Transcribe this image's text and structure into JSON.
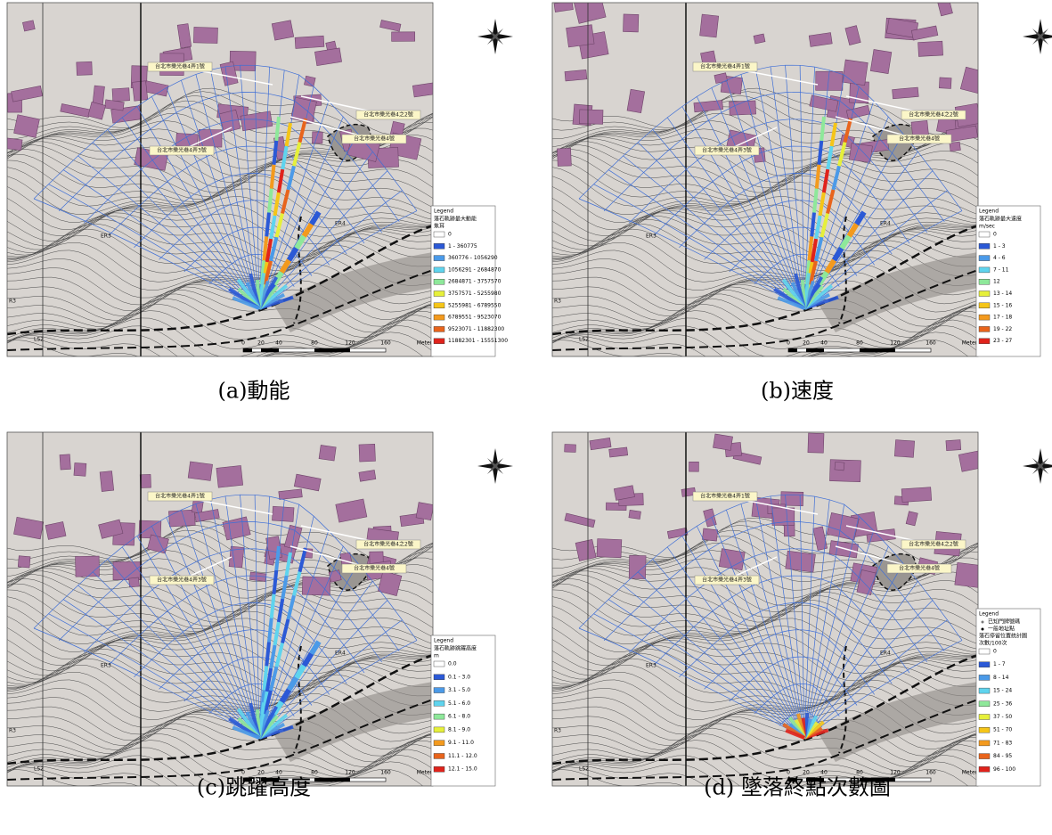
{
  "panels": [
    {
      "caption": "(a)動能",
      "legend": {
        "title": "Legend",
        "heading": "落石軌跡最大動能",
        "unit": "焦耳",
        "items": [
          {
            "label": "0",
            "color": "#ffffff"
          },
          {
            "label": "1 - 360775",
            "color": "#2b59d6"
          },
          {
            "label": "360776 - 1056290",
            "color": "#4b9ae8"
          },
          {
            "label": "1056291 - 2684870",
            "color": "#5fd4ee"
          },
          {
            "label": "2684871 - 3757570",
            "color": "#8ee89a"
          },
          {
            "label": "3757571 - 5255980",
            "color": "#e6f03a"
          },
          {
            "label": "5255981 - 6789550",
            "color": "#f5c518"
          },
          {
            "label": "6789551 - 9523070",
            "color": "#f39a1e"
          },
          {
            "label": "9523071 - 11882300",
            "color": "#e8641c"
          },
          {
            "label": "11882301 - 15551300",
            "color": "#e0231c"
          }
        ]
      },
      "scale": [
        "0",
        "20",
        "40",
        "80",
        "120",
        "160",
        "Meters"
      ],
      "places": [
        "台北市樂光巷4弄1號",
        "台北市樂光巷4之2號",
        "台北市樂光巷4弄3號",
        "台北市樂光巷4號"
      ],
      "map_labels": [
        "ER3",
        "R3",
        "LS2",
        "ER4"
      ]
    },
    {
      "caption": "(b)速度",
      "legend": {
        "title": "Legend",
        "heading": "落石軌跡最大速度",
        "unit": "m/sec",
        "items": [
          {
            "label": "0",
            "color": "#ffffff"
          },
          {
            "label": "1 - 3",
            "color": "#2b59d6"
          },
          {
            "label": "4 - 6",
            "color": "#4b9ae8"
          },
          {
            "label": "7 - 11",
            "color": "#5fd4ee"
          },
          {
            "label": "12",
            "color": "#8ee89a"
          },
          {
            "label": "13 - 14",
            "color": "#e6f03a"
          },
          {
            "label": "15 - 16",
            "color": "#f5c518"
          },
          {
            "label": "17 - 18",
            "color": "#f39a1e"
          },
          {
            "label": "19 - 22",
            "color": "#e8641c"
          },
          {
            "label": "23 - 27",
            "color": "#e0231c"
          }
        ]
      },
      "scale": [
        "0",
        "20",
        "40",
        "80",
        "120",
        "160",
        "Meters"
      ],
      "places": [
        "台北市樂光巷4弄1號",
        "台北市樂光巷4之2號",
        "台北市樂光巷4弄3號",
        "台北市樂光巷4號"
      ],
      "map_labels": [
        "ER3",
        "R3",
        "LS2",
        "ER4"
      ]
    },
    {
      "caption": "(c)跳躍高度",
      "legend": {
        "title": "Legend",
        "heading": "落石軌跡跳躍高度",
        "unit": "m",
        "items": [
          {
            "label": "0.0",
            "color": "#ffffff"
          },
          {
            "label": "0.1 - 3.0",
            "color": "#2b59d6"
          },
          {
            "label": "3.1 - 5.0",
            "color": "#4b9ae8"
          },
          {
            "label": "5.1 - 6.0",
            "color": "#5fd4ee"
          },
          {
            "label": "6.1 - 8.0",
            "color": "#8ee89a"
          },
          {
            "label": "8.1 - 9.0",
            "color": "#e6f03a"
          },
          {
            "label": "9.1 - 11.0",
            "color": "#f39a1e"
          },
          {
            "label": "11.1 - 12.0",
            "color": "#e8641c"
          },
          {
            "label": "12.1 - 15.0",
            "color": "#e0231c"
          }
        ]
      },
      "scale": [
        "0",
        "20",
        "40",
        "80",
        "120",
        "160",
        "Meters"
      ],
      "places": [
        "台北市樂光巷4弄1號",
        "台北市樂光巷4之2號",
        "台北市樂光巷4弄3號",
        "台北市樂光巷4號"
      ],
      "map_labels": [
        "ER3",
        "R3",
        "LS2",
        "ER4"
      ]
    },
    {
      "caption": "(d) 墜落終點次數圖",
      "legend": {
        "title": "Legend",
        "markers": [
          "已知門牌號碼",
          "一般地址點"
        ],
        "heading": "落石停留位置統計圖",
        "unit": "次數/100次",
        "items": [
          {
            "label": "0",
            "color": "#ffffff"
          },
          {
            "label": "1 - 7",
            "color": "#2b59d6"
          },
          {
            "label": "8 - 14",
            "color": "#4b9ae8"
          },
          {
            "label": "15 - 24",
            "color": "#5fd4ee"
          },
          {
            "label": "25 - 36",
            "color": "#8ee89a"
          },
          {
            "label": "37 - 50",
            "color": "#e6f03a"
          },
          {
            "label": "51 - 70",
            "color": "#f5c518"
          },
          {
            "label": "71 - 83",
            "color": "#f39a1e"
          },
          {
            "label": "84 - 95",
            "color": "#e8641c"
          },
          {
            "label": "96 - 100",
            "color": "#e0231c"
          }
        ]
      },
      "scale": [
        "0",
        "20",
        "40",
        "80",
        "120",
        "160",
        "Meters"
      ],
      "places": [
        "台北市樂光巷4弄1號",
        "台北市樂光巷4之2號",
        "台北市樂光巷4弄3號",
        "台北市樂光巷4號"
      ],
      "map_labels": [
        "ER3",
        "R3",
        "LS2",
        "ER4"
      ]
    }
  ]
}
